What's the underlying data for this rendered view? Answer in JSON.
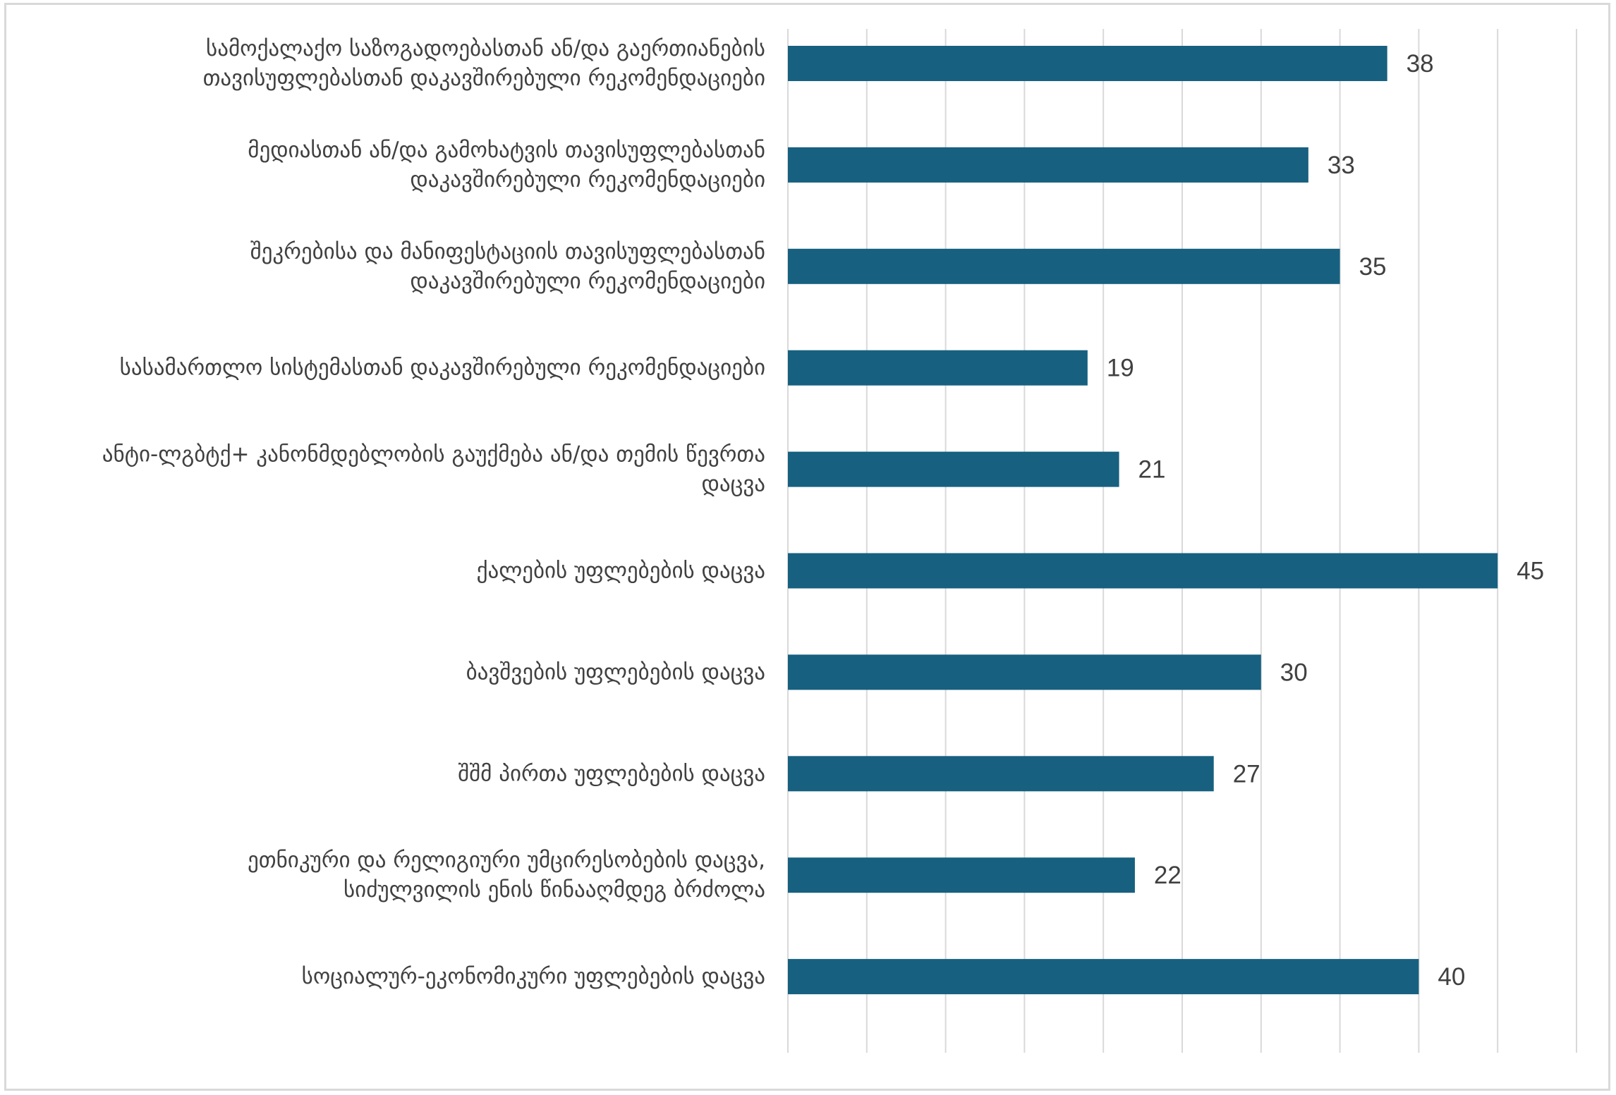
{
  "chart_data": {
    "type": "bar",
    "orientation": "horizontal",
    "title": "",
    "xlabel": "",
    "ylabel": "",
    "xlim": [
      0,
      50
    ],
    "grid": true,
    "legend": "none",
    "bar_color": "#17607f",
    "categories": [
      [
        "სამოქალაქო საზოგადოებასთან ან/და  გაერთიანების",
        "თავისუფლებასთან დაკავშირებული რეკომენდაციები"
      ],
      [
        "მედიასთან ან/და გამოხატვის თავისუფლებასთან",
        "დაკავშირებული რეკომენდაციები"
      ],
      [
        "შეკრებისა და მანიფესტაციის თავისუფლებასთან",
        "დაკავშირებული რეკომენდაციები"
      ],
      [
        "სასამართლო სისტემასთან დაკავშირებული რეკომენდაციები"
      ],
      [
        "ანტი-ლგბტქ+ კანონმდებლობის გაუქმება ან/და თემის წევრთა",
        "დაცვა"
      ],
      [
        "ქალების უფლებების დაცვა"
      ],
      [
        "ბავშვების უფლებების დაცვა"
      ],
      [
        "შშმ პირთა უფლებების დაცვა"
      ],
      [
        "ეთნიკური და რელიგიური უმცირესობების დაცვა,",
        "სიძულვილის ენის წინააღმდეგ ბრძოლა"
      ],
      [
        "სოციალურ-ეკონომიკური უფლებების დაცვა"
      ]
    ],
    "values": [
      38,
      33,
      35,
      19,
      21,
      45,
      30,
      27,
      22,
      40
    ]
  }
}
